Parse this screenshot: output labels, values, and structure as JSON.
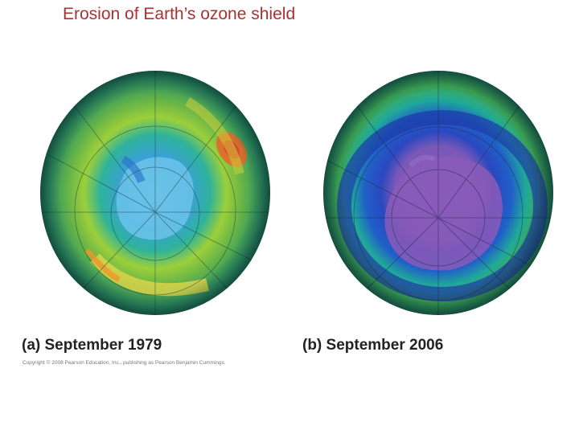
{
  "slide": {
    "title": "Erosion of Earth’s ozone shield"
  },
  "panels": [
    {
      "caption": "(a) September 1979"
    },
    {
      "caption": "(b) September 2006"
    }
  ],
  "footer": {
    "copyright": "Copyright © 2008 Pearson Education, Inc., publishing as Pearson Benjamin Cummings."
  },
  "colors": {
    "title": "#a83232",
    "ozone_high": "#f06a2a",
    "ozone_mid": "#c9d42a",
    "ozone_low": "#2a78d0",
    "ozone_hole": "#8a5ab8"
  }
}
